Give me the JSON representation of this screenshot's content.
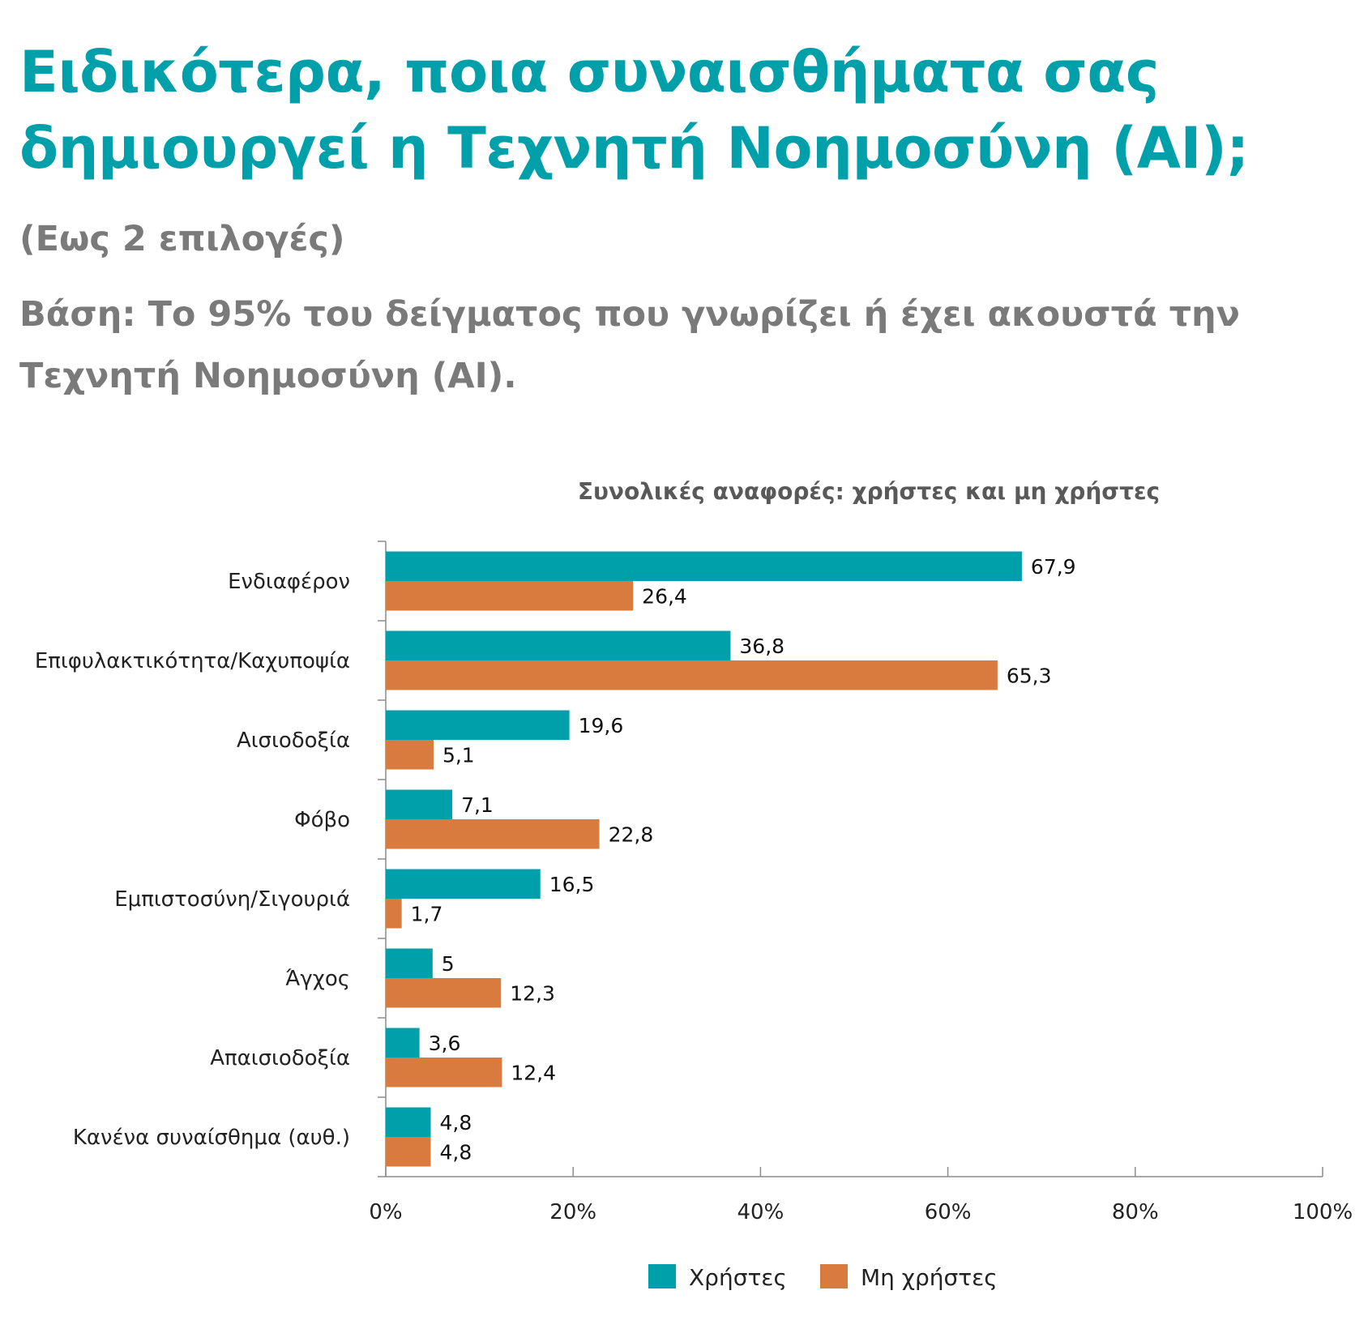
{
  "header": {
    "title": "Ειδικότερα, ποια συναισθήματα σας δημιουργεί η Τεχνητή Νοημοσύνη (AI);",
    "subtitle": "(Εως 2 επιλογές)",
    "base": "Βάση: Το 95% του δείγματος που γνωρίζει ή έχει ακουστά την Τεχνητή Νοημοσύνη (AI)."
  },
  "colors": {
    "users": "#00a0ab",
    "non_users": "#d97b3f",
    "title": "#00a0ab",
    "subtitle": "#7a7a7a"
  },
  "chart_data": {
    "type": "bar",
    "orientation": "horizontal",
    "title": "Συνολικές αναφορές: χρήστες και μη χρήστες",
    "categories": [
      "Ενδιαφέρον",
      "Επιφυλακτικότητα/Καχυποψία",
      "Αισιοδοξία",
      "Φόβο",
      "Εμπιστοσύνη/Σιγουριά",
      "Άγχος",
      "Απαισιοδοξία",
      "Κανένα συναίσθημα (αυθ.)"
    ],
    "series": [
      {
        "name": "Χρήστες",
        "values": [
          67.9,
          36.8,
          19.6,
          7.1,
          16.5,
          5,
          3.6,
          4.8
        ],
        "labels": [
          "67,9",
          "36,8",
          "19,6",
          "7,1",
          "16,5",
          "5",
          "3,6",
          "4,8"
        ]
      },
      {
        "name": "Μη χρήστες",
        "values": [
          26.4,
          65.3,
          5.1,
          22.8,
          1.7,
          12.3,
          12.4,
          4.8
        ],
        "labels": [
          "26,4",
          "65,3",
          "5,1",
          "22,8",
          "1,7",
          "12,3",
          "12,4",
          "4,8"
        ]
      }
    ],
    "xlim": [
      0,
      100
    ],
    "x_ticks": [
      "0%",
      "20%",
      "40%",
      "60%",
      "80%",
      "100%"
    ],
    "grid": false,
    "legend_position": "bottom"
  }
}
